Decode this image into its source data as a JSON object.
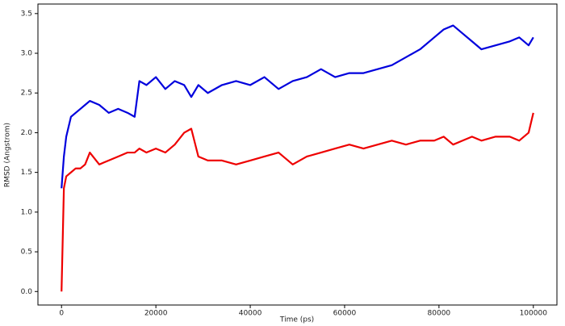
{
  "chart_data": {
    "type": "line",
    "x_label": "Time (ps)",
    "y_label": "RMSD (Angstrom)",
    "x": [
      0,
      500,
      1000,
      2000,
      3000,
      4000,
      5000,
      6000,
      8000,
      10000,
      12000,
      14000,
      15500,
      16500,
      18000,
      20000,
      22000,
      24000,
      26000,
      27500,
      29000,
      31000,
      34000,
      37000,
      40000,
      43000,
      46000,
      49000,
      52000,
      55000,
      58000,
      61000,
      64000,
      67000,
      70000,
      73000,
      76000,
      79000,
      81000,
      83000,
      85000,
      87000,
      89000,
      92000,
      95000,
      97000,
      99000,
      100000
    ],
    "series": [
      {
        "name": "blue",
        "color": "#0000dd",
        "values": [
          1.3,
          1.7,
          1.95,
          2.2,
          2.25,
          2.3,
          2.35,
          2.4,
          2.35,
          2.25,
          2.3,
          2.25,
          2.2,
          2.65,
          2.6,
          2.7,
          2.55,
          2.65,
          2.6,
          2.45,
          2.6,
          2.5,
          2.6,
          2.65,
          2.6,
          2.7,
          2.55,
          2.65,
          2.7,
          2.8,
          2.7,
          2.75,
          2.75,
          2.8,
          2.85,
          2.95,
          3.05,
          3.2,
          3.3,
          3.35,
          3.25,
          3.15,
          3.05,
          3.1,
          3.15,
          3.2,
          3.1,
          3.2
        ]
      },
      {
        "name": "red",
        "color": "#ee0000",
        "values": [
          0,
          1.3,
          1.45,
          1.5,
          1.55,
          1.55,
          1.6,
          1.75,
          1.6,
          1.65,
          1.7,
          1.75,
          1.75,
          1.8,
          1.75,
          1.8,
          1.75,
          1.85,
          2.0,
          2.05,
          1.7,
          1.65,
          1.65,
          1.6,
          1.65,
          1.7,
          1.75,
          1.6,
          1.7,
          1.75,
          1.8,
          1.85,
          1.8,
          1.85,
          1.9,
          1.85,
          1.9,
          1.9,
          1.95,
          1.85,
          1.9,
          1.95,
          1.9,
          1.95,
          1.95,
          1.9,
          2.0,
          2.25
        ]
      }
    ],
    "xlim": [
      -5000,
      105000
    ],
    "ylim": [
      -0.17,
      3.62
    ],
    "xticks": [
      0,
      20000,
      40000,
      60000,
      80000,
      100000
    ],
    "yticks": [
      {
        "value": 0,
        "label": "0.0"
      },
      {
        "value": 0.5,
        "label": "0.5"
      },
      {
        "value": 1,
        "label": "1.0"
      },
      {
        "value": 1.5,
        "label": "1.5"
      },
      {
        "value": 2,
        "label": "2.0"
      },
      {
        "value": 2.5,
        "label": "2.5"
      },
      {
        "value": 3,
        "label": "3.0"
      },
      {
        "value": 3.5,
        "label": "3.5"
      }
    ]
  }
}
